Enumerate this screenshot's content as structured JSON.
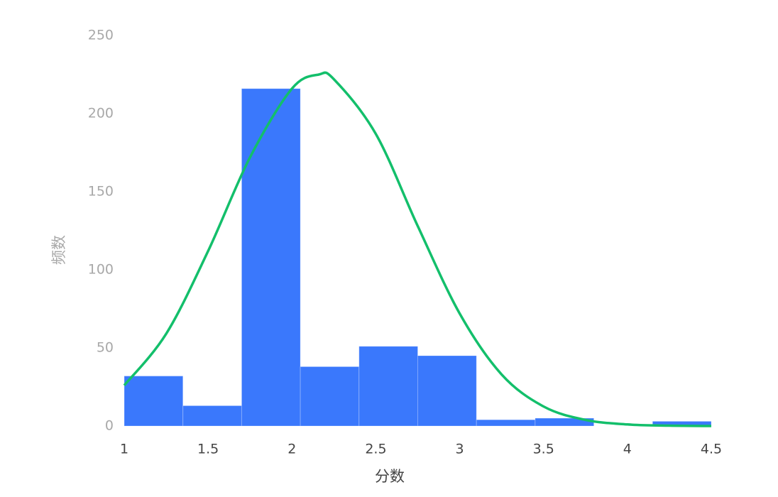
{
  "chart_data": {
    "type": "histogram",
    "bins": [
      1,
      1.35,
      1.7,
      2.05,
      2.4,
      2.75,
      3.1,
      3.45,
      3.8,
      4.15,
      4.5
    ],
    "counts": [
      32,
      13,
      216,
      38,
      51,
      45,
      4,
      5,
      0,
      3
    ],
    "color": "#3a78fc",
    "curve": {
      "type": "line",
      "color": "#13bf6b",
      "x": [
        1,
        1.25,
        1.5,
        1.75,
        2,
        2.16,
        2.25,
        2.5,
        2.75,
        3,
        3.25,
        3.5,
        3.75,
        4,
        4.25,
        4.5
      ],
      "y": [
        26,
        59,
        112,
        172,
        216,
        225,
        222,
        187,
        128,
        72,
        33,
        12.5,
        3.9,
        1,
        0.2,
        0
      ]
    },
    "xlabel": "分数",
    "ylabel": "频数",
    "xlim": [
      1,
      4.5
    ],
    "ylim": [
      0,
      250
    ],
    "xticks": [
      1,
      1.5,
      2,
      2.5,
      3,
      3.5,
      4,
      4.5
    ],
    "yticks": [
      0,
      50,
      100,
      150,
      200,
      250
    ],
    "grid": false
  }
}
